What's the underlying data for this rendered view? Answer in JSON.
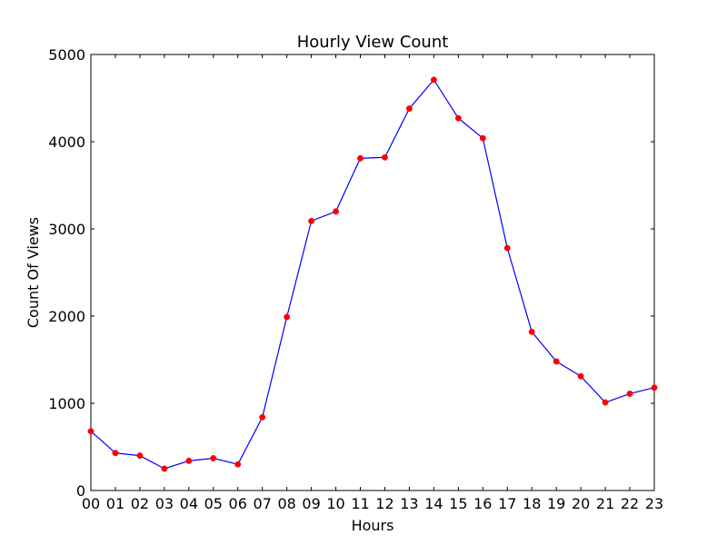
{
  "chart_data": {
    "type": "line",
    "title": "Hourly View Count",
    "xlabel": "Hours",
    "ylabel": "Count Of Views",
    "categories": [
      "00",
      "01",
      "02",
      "03",
      "04",
      "05",
      "06",
      "07",
      "08",
      "09",
      "10",
      "11",
      "12",
      "13",
      "14",
      "15",
      "16",
      "17",
      "18",
      "19",
      "20",
      "21",
      "22",
      "23"
    ],
    "series": [
      {
        "values": [
          680,
          430,
          400,
          250,
          340,
          370,
          300,
          840,
          1990,
          3090,
          3200,
          3810,
          3820,
          4380,
          4710,
          4270,
          4040,
          2780,
          1820,
          1480,
          1310,
          1010,
          1110,
          1180
        ],
        "line_color": "#0000ff",
        "marker_color": "#ff0000"
      }
    ],
    "ylim": [
      0,
      5000
    ],
    "yticks": [
      "0",
      "1000",
      "2000",
      "3000",
      "4000",
      "5000"
    ],
    "grid": false,
    "legend": "none"
  }
}
